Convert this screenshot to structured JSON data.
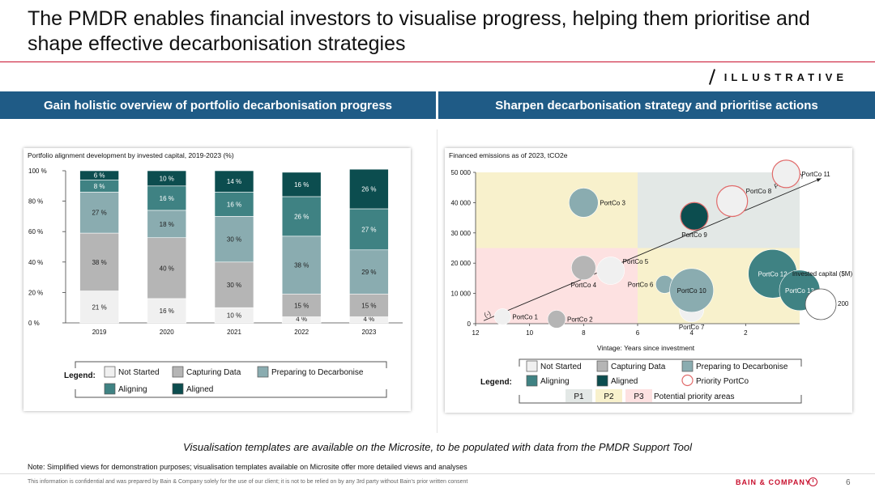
{
  "header": {
    "title": "The PMDR enables financial investors to visualise progress, helping them prioritise and shape effective decarbonisation strategies",
    "illustrative_label": "ILLUSTRATIVE"
  },
  "bands": {
    "left": "Gain holistic overview of portfolio decarbonisation progress",
    "right": "Sharpen decarbonisation strategy and prioritise actions"
  },
  "colors": {
    "not_started": "#f0f0f0",
    "capturing": "#b5b5b5",
    "preparing": "#8aacb0",
    "aligning": "#3f8283",
    "aligned": "#0c4d4f",
    "p1": "#fde1e1",
    "p2": "#f8f1cc",
    "p3": "#e3e8e6",
    "priority": "#e16b6b",
    "band": "#1f5b86"
  },
  "legends": {
    "label": "Legend:",
    "left": [
      "Not Started",
      "Capturing Data",
      "Preparing to Decarbonise",
      "Aligning",
      "Aligned"
    ],
    "right": [
      "Not Started",
      "Capturing Data",
      "Preparing to Decarbonise",
      "Aligning",
      "Aligned",
      "Priority PortCo"
    ],
    "priority_areas": [
      "P1",
      "P2",
      "P3"
    ],
    "priority_areas_label": "Potential priority areas"
  },
  "chart_data": [
    {
      "type": "bar",
      "stacked": true,
      "title": "Portfolio alignment development by invested capital, 2019-2023 (%)",
      "categories": [
        "2019",
        "2020",
        "2021",
        "2022",
        "2023"
      ],
      "ylim": [
        0,
        100
      ],
      "yticks": [
        "0 %",
        "20 %",
        "40 %",
        "60 %",
        "80 %",
        "100 %"
      ],
      "series": [
        {
          "name": "Not Started",
          "values": [
            21,
            16,
            10,
            4,
            4
          ]
        },
        {
          "name": "Capturing Data",
          "values": [
            38,
            40,
            30,
            15,
            15
          ]
        },
        {
          "name": "Preparing to Decarbonise",
          "values": [
            27,
            18,
            30,
            38,
            29
          ]
        },
        {
          "name": "Aligning",
          "values": [
            8,
            16,
            16,
            26,
            27
          ]
        },
        {
          "name": "Aligned",
          "values": [
            6,
            10,
            14,
            16,
            26
          ]
        }
      ]
    },
    {
      "type": "scatter",
      "bubble": true,
      "title": "Financed emissions as of 2023, tCO2e",
      "xlabel": "Vintage: Years since investment",
      "xlim": [
        12,
        0
      ],
      "xticks": [
        "12",
        "10",
        "8",
        "6",
        "4",
        "2"
      ],
      "ylim": [
        0,
        50000
      ],
      "yticks": [
        "0",
        "10 000",
        "20 000",
        "30 000",
        "40 000",
        "50 000"
      ],
      "size_legend_label": "Invested capital ($M)",
      "size_legend_value": "200",
      "trend_low_label": "(-)",
      "trend_high_label": "Priority (+)",
      "points": [
        {
          "name": "PortCo 1",
          "x": 11.0,
          "y": 2300,
          "size": 10,
          "status": "Not Started",
          "priority": false
        },
        {
          "name": "PortCo 2",
          "x": 9.0,
          "y": 1500,
          "size": 11,
          "status": "Capturing Data",
          "priority": false
        },
        {
          "name": "PortCo 3",
          "x": 8.0,
          "y": 40000,
          "size": 18,
          "status": "Preparing to Decarbonise",
          "priority": false
        },
        {
          "name": "PortCo 4",
          "x": 8.0,
          "y": 18500,
          "size": 15,
          "status": "Capturing Data",
          "priority": false
        },
        {
          "name": "PortCo 5",
          "x": 7.0,
          "y": 17500,
          "size": 17,
          "status": "Not Started",
          "priority": false
        },
        {
          "name": "PortCo 6",
          "x": 5.0,
          "y": 13000,
          "size": 11,
          "status": "Preparing to Decarbonise",
          "priority": false
        },
        {
          "name": "PortCo 7",
          "x": 4.0,
          "y": 4600,
          "size": 15,
          "status": "Not Started",
          "priority": false
        },
        {
          "name": "PortCo 8",
          "x": 2.5,
          "y": 40500,
          "size": 19,
          "status": "Not Started",
          "priority": true
        },
        {
          "name": "PortCo 9",
          "x": 3.9,
          "y": 35500,
          "size": 17,
          "status": "Aligned",
          "priority": true
        },
        {
          "name": "PortCo 10",
          "x": 4.0,
          "y": 11000,
          "size": 27,
          "status": "Preparing to Decarbonise",
          "priority": false
        },
        {
          "name": "PortCo 11",
          "x": 0.5,
          "y": 49500,
          "size": 17,
          "status": "Not Started",
          "priority": true
        },
        {
          "name": "PortCo 12",
          "x": 1.0,
          "y": 16500,
          "size": 30,
          "status": "Aligning",
          "priority": false
        },
        {
          "name": "PortCo 13",
          "x": 0.0,
          "y": 11000,
          "size": 25,
          "status": "Aligning",
          "priority": false
        }
      ],
      "label_positions": [
        "right",
        "right",
        "right",
        "below",
        "right-up",
        "left",
        "below",
        "right-up",
        "below",
        "inside",
        "right",
        "inside",
        "inside"
      ]
    }
  ],
  "caption": "Visualisation templates are available on the Microsite, to be populated with data from the PMDR Support Tool",
  "note": "Note: Simplified views for demonstration purposes; visualisation templates available on Microsite offer more detailed views and analyses",
  "footer": {
    "confidential": "This information is confidential and was prepared by Bain & Company solely for the use of our client; it is not to be relied on by any 3rd party without Bain's prior written consent",
    "brand": "BAIN & COMPANY",
    "page": "6"
  }
}
